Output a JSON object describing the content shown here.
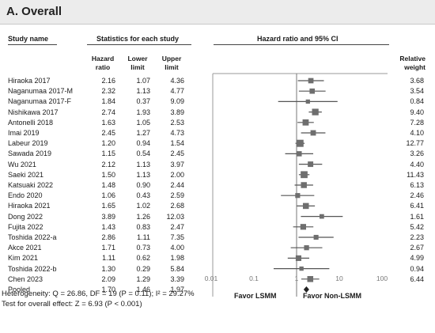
{
  "section_title": "A. Overall",
  "headers": {
    "study_name": "Study name",
    "stats": "Statistics for each study",
    "hr_ci": "Hazard ratio and 95% CI",
    "hazard_l1": "Hazard",
    "hazard_l2": "ratio",
    "lower_l1": "Lower",
    "lower_l2": "limit",
    "upper_l1": "Upper",
    "upper_l2": "limit",
    "weight_l1": "Relative",
    "weight_l2": "weight"
  },
  "axis_labels": [
    "0.01",
    "0.1",
    "1",
    "10",
    "100"
  ],
  "favor_left": "Favor LSMM",
  "favor_right": "Favor Non-LSMM",
  "heterogeneity": "Heterogeneity: Q = 26.86, DF = 19 (P = 0.11); I² = 29.27%",
  "overall_effect": "Test for overall effect: Z = 6.93 (P < 0.001)",
  "chart_data": {
    "type": "forest",
    "x_scale": "log",
    "xlim": [
      0.01,
      100
    ],
    "ticks": [
      0.01,
      0.1,
      1,
      10,
      100
    ],
    "reference_line": 1,
    "studies": [
      {
        "name": "Hiraoka 2017",
        "hr": "2.16",
        "lower": "1.07",
        "upper": "4.36",
        "weight": "3.68"
      },
      {
        "name": "Naganumaa 2017-M",
        "hr": "2.32",
        "lower": "1.13",
        "upper": "4.77",
        "weight": "3.54"
      },
      {
        "name": "Naganumaa 2017-F",
        "hr": "1.84",
        "lower": "0.37",
        "upper": "9.09",
        "weight": "0.84"
      },
      {
        "name": "Nishikawa 2017",
        "hr": "2.74",
        "lower": "1.93",
        "upper": "3.89",
        "weight": "9.40"
      },
      {
        "name": "Antonelli 2018",
        "hr": "1.63",
        "lower": "1.05",
        "upper": "2.53",
        "weight": "7.28"
      },
      {
        "name": "Imai 2019",
        "hr": "2.45",
        "lower": "1.27",
        "upper": "4.73",
        "weight": "4.10"
      },
      {
        "name": "Labeur 2019",
        "hr": "1.20",
        "lower": "0.94",
        "upper": "1.54",
        "weight": "12.77"
      },
      {
        "name": "Sawada 2019",
        "hr": "1.15",
        "lower": "0.54",
        "upper": "2.45",
        "weight": "3.26"
      },
      {
        "name": "Wu 2021",
        "hr": "2.12",
        "lower": "1.13",
        "upper": "3.97",
        "weight": "4.40"
      },
      {
        "name": "Saeki 2021",
        "hr": "1.50",
        "lower": "1.13",
        "upper": "2.00",
        "weight": "11.43"
      },
      {
        "name": "Katsuaki 2022",
        "hr": "1.48",
        "lower": "0.90",
        "upper": "2.44",
        "weight": "6.13"
      },
      {
        "name": "Endo 2020",
        "hr": "1.06",
        "lower": "0.43",
        "upper": "2.59",
        "weight": "2.46"
      },
      {
        "name": "Hiraoka 2021",
        "hr": "1.65",
        "lower": "1.02",
        "upper": "2.68",
        "weight": "6.41"
      },
      {
        "name": "Dong 2022",
        "hr": "3.89",
        "lower": "1.26",
        "upper": "12.03",
        "weight": "1.61"
      },
      {
        "name": "Fujita 2022",
        "hr": "1.43",
        "lower": "0.83",
        "upper": "2.47",
        "weight": "5.42"
      },
      {
        "name": "Toshida 2022-a",
        "hr": "2.86",
        "lower": "1.11",
        "upper": "7.35",
        "weight": "2.23"
      },
      {
        "name": "Akce 2021",
        "hr": "1.71",
        "lower": "0.73",
        "upper": "4.00",
        "weight": "2.67"
      },
      {
        "name": "Kim 2021",
        "hr": "1.11",
        "lower": "0.62",
        "upper": "1.98",
        "weight": "4.99"
      },
      {
        "name": "Toshida 2022-b",
        "hr": "1.30",
        "lower": "0.29",
        "upper": "5.84",
        "weight": "0.94"
      },
      {
        "name": "Chen 2023",
        "hr": "2.09",
        "lower": "1.29",
        "upper": "3.39",
        "weight": "6.44"
      }
    ],
    "pooled": {
      "name": "Pooled",
      "hr": "1.70",
      "lower": "1.46",
      "upper": "1.97"
    }
  }
}
